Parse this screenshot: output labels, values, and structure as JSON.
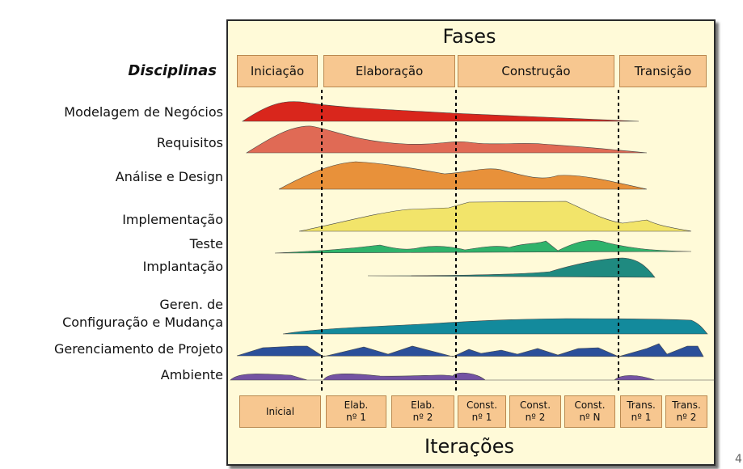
{
  "phases_title": "Fases",
  "iterations_title": "Iterações",
  "disciplines_header": "Disciplinas",
  "phases": [
    "Iniciação",
    "Elaboração",
    "Construção",
    "Transição"
  ],
  "disciplines": [
    {
      "label": "Modelagem de Negócios",
      "color": "#d9261c"
    },
    {
      "label": "Requisitos",
      "color": "#e06a55"
    },
    {
      "label": "Análise e Design",
      "color": "#e8913a"
    },
    {
      "label": "Implementação",
      "color": "#f2e46a"
    },
    {
      "label": "Teste",
      "color": "#2fb36b"
    },
    {
      "label": "Implantação",
      "color": "#1f8a80"
    },
    {
      "label": "Geren. de\nConfiguração e Mudança",
      "color": "#138a9c"
    },
    {
      "label": "Gerenciamento de Projeto",
      "color": "#2b4f9a"
    },
    {
      "label": "Ambiente",
      "color": "#7453a3"
    }
  ],
  "iterations": [
    "Inicial",
    "Elab.\nnº 1",
    "Elab.\nnº 2",
    "Const.\nnº 1",
    "Const.\nnº 2",
    "Const.\nnº N",
    "Trans.\nnº 1",
    "Trans.\nnº 2"
  ],
  "page_number": "4"
}
